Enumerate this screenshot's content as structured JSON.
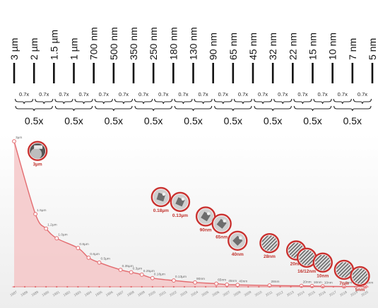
{
  "chart_data": [
    {
      "type": "other",
      "nodes": [
        "3 µm",
        "2 µm",
        "1.5 µm",
        "1 µm",
        "700 nm",
        "500 nm",
        "350 nm",
        "250 nm",
        "180 nm",
        "130 nm",
        "90 nm",
        "65 nm",
        "45 nm",
        "32 nm",
        "22 nm",
        "15 nm",
        "10 nm",
        "7 nm",
        "5 nm"
      ],
      "step_factor": "0.7x",
      "pair_factor": "0.5x",
      "pair_count": 9
    },
    {
      "type": "area",
      "x": [
        1987,
        1988,
        1989,
        1990,
        1991,
        1992,
        1993,
        1994,
        1995,
        1996,
        1997,
        1998,
        1999,
        2000,
        2001,
        2002,
        2003,
        2004,
        2005,
        2006,
        2007,
        2008,
        2009,
        2010,
        2011,
        2012,
        2013,
        2014,
        2015,
        2016,
        2017,
        2018,
        2019,
        2020
      ],
      "xlim": [
        1987,
        2020
      ],
      "ylim": [
        0,
        3
      ],
      "grid": false,
      "points": [
        {
          "x": 1987,
          "y": 3.0,
          "label": "3µm"
        },
        {
          "x": 1989,
          "y": 1.5,
          "label": "1.5µm"
        },
        {
          "x": 1990,
          "y": 1.2,
          "label": "1.2µm"
        },
        {
          "x": 1991,
          "y": 1.0,
          "label": "1.0µm"
        },
        {
          "x": 1993,
          "y": 0.8,
          "label": "0.8µm"
        },
        {
          "x": 1994,
          "y": 0.6,
          "label": "0.6µm"
        },
        {
          "x": 1995,
          "y": 0.5,
          "label": "0.5µm"
        },
        {
          "x": 1997,
          "y": 0.35,
          "label": "0.35µm"
        },
        {
          "x": 1998,
          "y": 0.3,
          "label": "0.3µm"
        },
        {
          "x": 1999,
          "y": 0.25,
          "label": "0.25µm"
        },
        {
          "x": 2000,
          "y": 0.18,
          "label": "0.18µm"
        },
        {
          "x": 2002,
          "y": 0.13,
          "label": "0.13µm"
        },
        {
          "x": 2004,
          "y": 0.09,
          "label": "90nm"
        },
        {
          "x": 2006,
          "y": 0.065,
          "label": "65nm"
        },
        {
          "x": 2007,
          "y": 0.045,
          "label": "45nm"
        },
        {
          "x": 2008,
          "y": 0.04,
          "label": "40nm"
        },
        {
          "x": 2011,
          "y": 0.028,
          "label": "28nm"
        },
        {
          "x": 2014,
          "y": 0.02,
          "label": "20nm"
        },
        {
          "x": 2015,
          "y": 0.016,
          "label": "16nm"
        },
        {
          "x": 2016,
          "y": 0.01,
          "label": "10nm"
        },
        {
          "x": 2018,
          "y": 0.007,
          "label": "7nm"
        },
        {
          "x": 2020,
          "y": 0.005,
          "label": "5nm"
        }
      ],
      "badges": [
        {
          "x": 1989.2,
          "y": 2.8,
          "label": "3µm",
          "image": "wafer-die-photo"
        },
        {
          "x": 2000.8,
          "y": 1.85,
          "label": "0.18µm",
          "image": "chip-photo"
        },
        {
          "x": 2002.6,
          "y": 1.75,
          "label": "0.13µm",
          "image": "chip-photo"
        },
        {
          "x": 2005.0,
          "y": 1.45,
          "label": "90nm",
          "image": "chip-photo"
        },
        {
          "x": 2006.5,
          "y": 1.3,
          "label": "65nm",
          "image": "chip-photo"
        },
        {
          "x": 2008.0,
          "y": 0.95,
          "label": "40nm",
          "image": "chip-photo"
        },
        {
          "x": 2011.0,
          "y": 0.9,
          "label": "28nm",
          "image": "transistor-micrograph"
        },
        {
          "x": 2013.5,
          "y": 0.75,
          "label": "20nm",
          "image": "transistor-micrograph"
        },
        {
          "x": 2014.5,
          "y": 0.6,
          "label": "16/12nm",
          "image": "transistor-micrograph"
        },
        {
          "x": 2016.0,
          "y": 0.5,
          "label": "10nm",
          "image": "transistor-micrograph"
        },
        {
          "x": 2018.0,
          "y": 0.35,
          "label": "7nm",
          "image": "transistor-micrograph"
        },
        {
          "x": 2019.5,
          "y": 0.22,
          "label": "5nm",
          "image": "transistor-micrograph"
        }
      ],
      "colors": {
        "line": "#e36b6f",
        "fill": "#f4c7c8",
        "badge_ring": "#c9312f",
        "badge_text": "#c0312b",
        "point_label": "#666666"
      }
    }
  ]
}
